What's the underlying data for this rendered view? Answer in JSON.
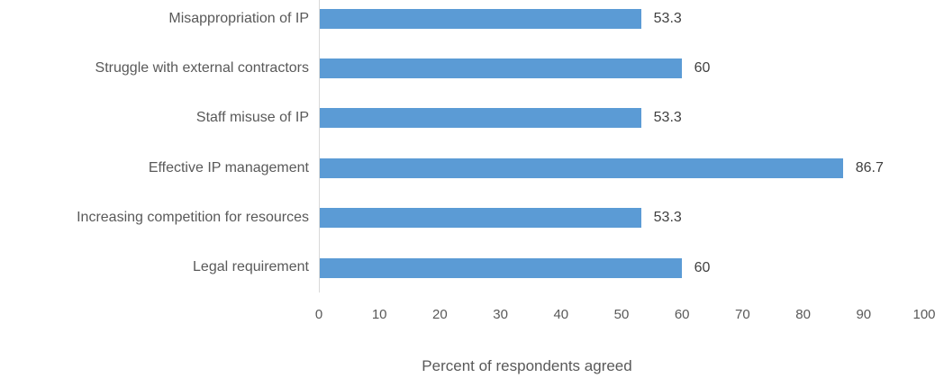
{
  "chart_data": {
    "type": "bar",
    "orientation": "horizontal",
    "categories": [
      "Misappropriation of IP",
      "Struggle with external contractors",
      "Staff misuse of IP",
      "Effective IP management",
      "Increasing competition for resources",
      "Legal requirement"
    ],
    "values": [
      53.3,
      60,
      53.3,
      86.7,
      53.3,
      60
    ],
    "value_labels": [
      "53.3",
      "60",
      "53.3",
      "86.7",
      "53.3",
      "60"
    ],
    "title": "",
    "xlabel": "Percent of respondents agreed",
    "ylabel": "",
    "xlim": [
      0,
      100
    ],
    "xticks": [
      "0",
      "10",
      "20",
      "30",
      "40",
      "50",
      "60",
      "70",
      "80",
      "90",
      "100"
    ],
    "grid": false,
    "legend": false,
    "bar_color": "#5B9BD5",
    "category_label_color": "#595959",
    "value_label_color": "#404040",
    "tick_label_color": "#595959",
    "axis_title_color": "#595959",
    "axis_line_color": "#D9D9D9"
  }
}
